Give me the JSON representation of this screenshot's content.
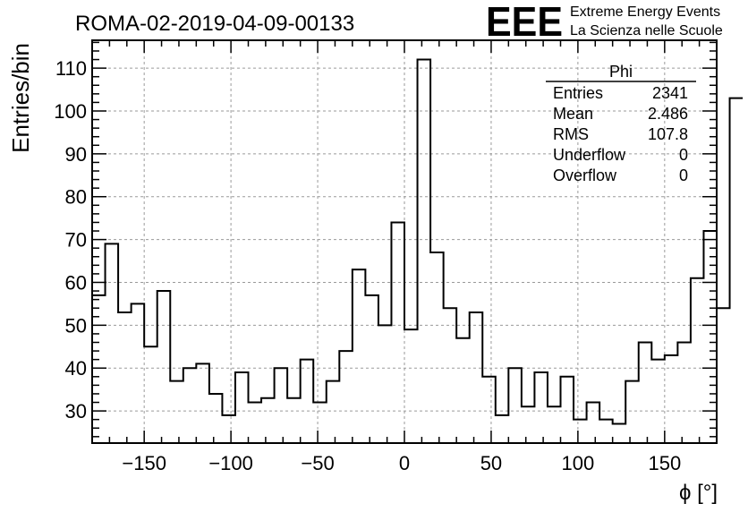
{
  "title": "ROMA-02-2019-04-09-00133",
  "logo": {
    "mark": "EEE",
    "line1": "Extreme Energy Events",
    "line2": "La Scienza nelle Scuole",
    "color": "#1a1aee"
  },
  "stats": {
    "name": "Phi",
    "rows": [
      {
        "label": "Entries",
        "value": "2341"
      },
      {
        "label": "Mean",
        "value": "2.486"
      },
      {
        "label": "RMS",
        "value": "107.8"
      },
      {
        "label": "Underflow",
        "value": "0"
      },
      {
        "label": "Overflow",
        "value": "0"
      }
    ]
  },
  "chart_data": {
    "type": "histogram",
    "xlabel": "ϕ [°]",
    "ylabel": "Entries/bin",
    "xlim": [
      -180,
      180
    ],
    "ylim": [
      22.5,
      116.5
    ],
    "bin_width": 7.5,
    "bin_start": -180,
    "grid": true,
    "xticks": [
      -150,
      -100,
      -50,
      0,
      50,
      100,
      150
    ],
    "yticks": [
      30,
      40,
      50,
      60,
      70,
      80,
      90,
      100,
      110
    ],
    "values": [
      57,
      69,
      53,
      55,
      45,
      58,
      37,
      40,
      41,
      34,
      29,
      39,
      32,
      33,
      40,
      33,
      42,
      32,
      37,
      44,
      63,
      57,
      50,
      74,
      49,
      112,
      67,
      54,
      47,
      53,
      38,
      29,
      40,
      31,
      39,
      31,
      38,
      28,
      32,
      28,
      27,
      37,
      46,
      42,
      43,
      46,
      61,
      72,
      54,
      103
    ]
  }
}
